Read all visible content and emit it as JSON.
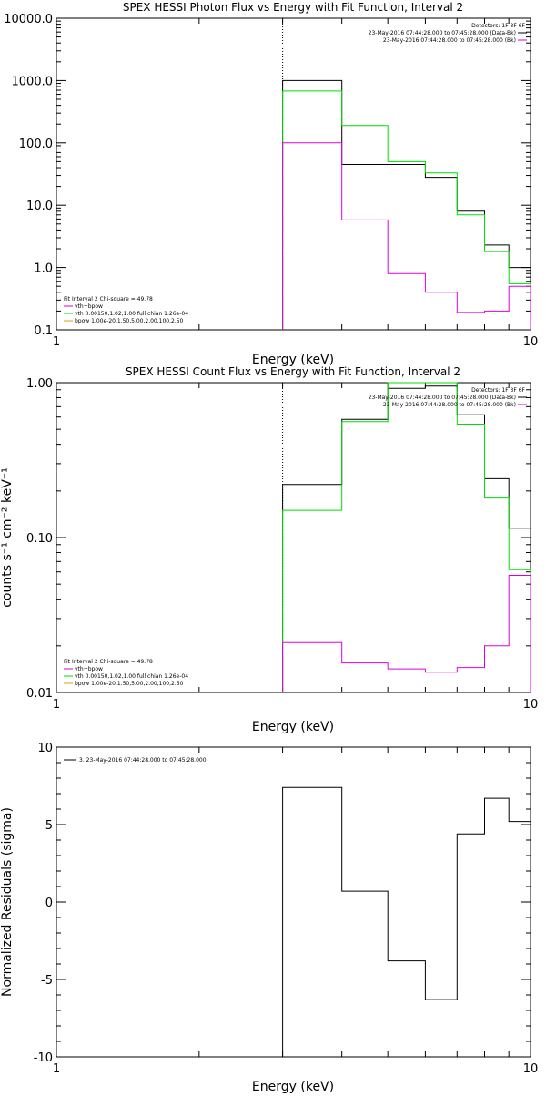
{
  "colors": {
    "background": "#ffffff",
    "axis": "#000000",
    "data": "#000000",
    "total_fit": "#00dd00",
    "vth_component": "#dd00dd",
    "bpow_component": "#ccaa00"
  },
  "chart_data": [
    {
      "type": "line",
      "style": "histogram-step",
      "title": "SPEX HESSI Photon Flux vs Energy with Fit Function, Interval 2",
      "xlabel": "Energy (keV)",
      "ylabel": "",
      "xscale": "log",
      "yscale": "log",
      "xlim": [
        1,
        10
      ],
      "ylim": [
        0.1,
        10000
      ],
      "x_ticks": [
        "1",
        "10"
      ],
      "y_ticks": [
        {
          "value": 0.1,
          "label": "0.1"
        },
        {
          "value": 1,
          "label": "1.0"
        },
        {
          "value": 10,
          "label": "10.0"
        },
        {
          "value": 100,
          "label": "100.0"
        },
        {
          "value": 1000,
          "label": "1000.0"
        },
        {
          "value": 10000,
          "label": "10000.0"
        }
      ],
      "vline_x": 3,
      "bin_edges": [
        3.0,
        4.0,
        5.0,
        6.0,
        7.0,
        8.0,
        9.0,
        10.0
      ],
      "legend_top": [
        {
          "text": "Detectors: 1F 3F 6F",
          "color": "",
          "swatch": false
        },
        {
          "text": "23-May-2016 07:44:28.000 to 07:45:28.000 (Data-Bk)",
          "color": "#000000",
          "swatch": true
        },
        {
          "text": "23-May-2016 07:44:28.000 to 07:45:28.000 (Bk)",
          "color": "#dd00dd",
          "swatch": true
        }
      ],
      "legend_bottom": [
        {
          "text": "Fit Interval 2   Chi-square = 49.78",
          "color": "",
          "swatch": false
        },
        {
          "text": "vth+bpow",
          "color": "#dd00dd",
          "swatch": true
        },
        {
          "text": "vth 0.00150,1.02,1.00   full chian 1.26e-04",
          "color": "#00dd00",
          "swatch": true
        },
        {
          "text": "bpow 1.00e-20,1.50,5.00,2.00,100,2.50",
          "color": "#ccaa00",
          "swatch": true
        }
      ],
      "series": [
        {
          "color": "#000000",
          "values": [
            1000,
            45,
            45,
            28,
            8,
            2.3,
            1.0
          ]
        },
        {
          "color": "#00dd00",
          "values": [
            680,
            190,
            50,
            33,
            7,
            1.8,
            0.55
          ]
        },
        {
          "color": "#dd00dd",
          "values": [
            100,
            5.8,
            0.8,
            0.4,
            0.19,
            0.2,
            0.5
          ]
        }
      ]
    },
    {
      "type": "line",
      "style": "histogram-step",
      "title": "SPEX HESSI Count Flux vs Energy with Fit Function, Interval 2",
      "xlabel": "Energy (keV)",
      "ylabel": "counts s⁻¹ cm⁻² keV⁻¹",
      "xscale": "log",
      "yscale": "log",
      "xlim": [
        1,
        10
      ],
      "ylim": [
        0.01,
        1.0
      ],
      "x_ticks": [
        "1",
        "10"
      ],
      "y_ticks": [
        {
          "value": 0.01,
          "label": "0.01"
        },
        {
          "value": 0.1,
          "label": "0.10"
        },
        {
          "value": 1,
          "label": "1.00"
        }
      ],
      "vline_x": 3,
      "bin_edges": [
        3.0,
        4.0,
        5.0,
        6.0,
        7.0,
        8.0,
        9.0,
        10.0
      ],
      "legend_top": [
        {
          "text": "Detectors: 1F 3F 6F",
          "color": "",
          "swatch": false
        },
        {
          "text": "23-May-2016 07:44:28.000 to 07:45:28.000 (Data-Bk)",
          "color": "#000000",
          "swatch": true
        },
        {
          "text": "23-May-2016 07:44:28.000 to 07:45:28.000 (Bk)",
          "color": "#dd00dd",
          "swatch": true
        }
      ],
      "legend_bottom": [
        {
          "text": "Fit Interval 2   Chi-square = 49.78",
          "color": "",
          "swatch": false
        },
        {
          "text": "vth+bpow",
          "color": "#dd00dd",
          "swatch": true
        },
        {
          "text": "vth 0.00150,1.02,1.00   full chian 1.26e-04",
          "color": "#00dd00",
          "swatch": true
        },
        {
          "text": "bpow 1.00e-20,1.50,5.00,2.00,100,2.50",
          "color": "#ccaa00",
          "swatch": true
        }
      ],
      "series": [
        {
          "color": "#000000",
          "values": [
            0.22,
            0.58,
            0.92,
            0.95,
            0.62,
            0.24,
            0.115
          ]
        },
        {
          "color": "#00dd00",
          "values": [
            0.15,
            0.56,
            1.0,
            1.0,
            0.54,
            0.18,
            0.062
          ]
        },
        {
          "color": "#dd00dd",
          "values": [
            0.021,
            0.0155,
            0.0142,
            0.0135,
            0.0145,
            0.02,
            0.057
          ]
        }
      ]
    },
    {
      "type": "line",
      "style": "histogram-step",
      "title": "",
      "xlabel": "Energy (keV)",
      "ylabel": "Normalized Residuals (sigma)",
      "xscale": "log",
      "yscale": "linear",
      "xlim": [
        1,
        10
      ],
      "ylim": [
        -10,
        10
      ],
      "x_ticks": [
        "1",
        "10"
      ],
      "y_ticks": [
        {
          "value": -10,
          "label": "-10"
        },
        {
          "value": -5,
          "label": "-5"
        },
        {
          "value": 0,
          "label": "0"
        },
        {
          "value": 5,
          "label": "5"
        },
        {
          "value": 10,
          "label": "10"
        }
      ],
      "bin_edges": [
        3.0,
        4.0,
        5.0,
        6.0,
        7.0,
        8.0,
        9.0,
        10.0
      ],
      "legend_top_left": [
        {
          "text": "3. 23-May-2016 07:44:28.000 to 07:45:28.000",
          "color": "#000000",
          "swatch": true
        }
      ],
      "series": [
        {
          "color": "#000000",
          "values": [
            7.4,
            0.7,
            -3.8,
            -6.3,
            4.4,
            6.7,
            5.2
          ]
        }
      ]
    }
  ]
}
